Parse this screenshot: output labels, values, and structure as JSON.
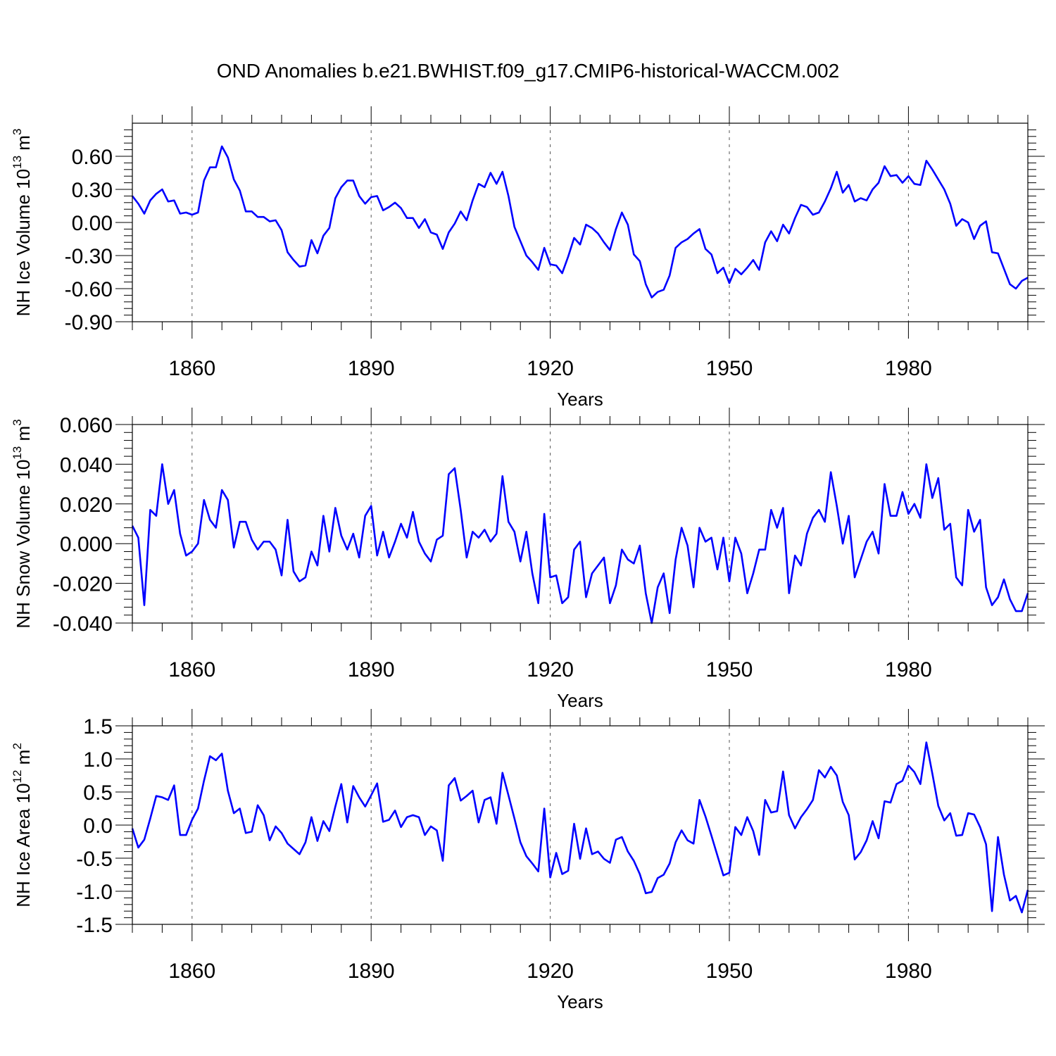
{
  "figure": {
    "title": "OND Anomalies b.e21.BWHIST.f09_g17.CMIP6-historical-WACCM.002",
    "line_color": "#0000ff"
  },
  "chart_data": [
    {
      "type": "line",
      "ylabel_main": "NH Ice Volume 10",
      "ylabel_exp": "13",
      "ylabel_unit": " m",
      "ylabel_unit_exp": "3",
      "xlabel": "Years",
      "xlim": [
        1850,
        2000
      ],
      "ylim": [
        -0.9,
        0.9
      ],
      "yticks": [
        -0.9,
        -0.6,
        -0.3,
        0.0,
        0.3,
        0.6
      ],
      "ytick_labels": [
        "-0.90",
        "-0.60",
        "-0.30",
        "0.00",
        "0.30",
        "0.60"
      ],
      "xticks": [
        1860,
        1890,
        1920,
        1950,
        1980
      ],
      "xtick_labels": [
        "1860",
        "1890",
        "1920",
        "1950",
        "1980"
      ],
      "x_start": 1850,
      "series": [
        {
          "name": "NH Ice Volume",
          "values": [
            0.24,
            0.17,
            0.08,
            0.2,
            0.26,
            0.3,
            0.19,
            0.2,
            0.08,
            0.09,
            0.07,
            0.09,
            0.38,
            0.5,
            0.5,
            0.69,
            0.59,
            0.39,
            0.29,
            0.1,
            0.1,
            0.05,
            0.05,
            0.01,
            0.02,
            -0.07,
            -0.27,
            -0.34,
            -0.4,
            -0.39,
            -0.16,
            -0.28,
            -0.12,
            -0.05,
            0.22,
            0.32,
            0.38,
            0.38,
            0.24,
            0.17,
            0.23,
            0.24,
            0.11,
            0.14,
            0.18,
            0.13,
            0.04,
            0.04,
            -0.05,
            0.03,
            -0.09,
            -0.11,
            -0.24,
            -0.09,
            -0.01,
            0.1,
            0.02,
            0.2,
            0.35,
            0.32,
            0.45,
            0.35,
            0.46,
            0.24,
            -0.04,
            -0.17,
            -0.3,
            -0.36,
            -0.43,
            -0.23,
            -0.38,
            -0.39,
            -0.46,
            -0.31,
            -0.14,
            -0.2,
            -0.02,
            -0.05,
            -0.1,
            -0.18,
            -0.25,
            -0.06,
            0.09,
            -0.02,
            -0.29,
            -0.35,
            -0.56,
            -0.68,
            -0.63,
            -0.61,
            -0.48,
            -0.23,
            -0.18,
            -0.15,
            -0.1,
            -0.06,
            -0.24,
            -0.29,
            -0.46,
            -0.41,
            -0.55,
            -0.42,
            -0.47,
            -0.41,
            -0.34,
            -0.43,
            -0.18,
            -0.08,
            -0.17,
            -0.02,
            -0.1,
            0.04,
            0.16,
            0.14,
            0.07,
            0.09,
            0.19,
            0.31,
            0.46,
            0.27,
            0.34,
            0.19,
            0.22,
            0.2,
            0.3,
            0.36,
            0.51,
            0.42,
            0.43,
            0.36,
            0.42,
            0.35,
            0.34,
            0.56,
            0.48,
            0.39,
            0.3,
            0.17,
            -0.03,
            0.03,
            0.0,
            -0.15,
            -0.03,
            0.01,
            -0.27,
            -0.28,
            -0.42,
            -0.56,
            -0.6,
            -0.53,
            -0.5
          ]
        }
      ]
    },
    {
      "type": "line",
      "ylabel_main": "NH Snow Volume 10",
      "ylabel_exp": "13",
      "ylabel_unit": " m",
      "ylabel_unit_exp": "3",
      "xlabel": "Years",
      "xlim": [
        1850,
        2000
      ],
      "ylim": [
        -0.04,
        0.06
      ],
      "yticks": [
        -0.04,
        -0.02,
        0.0,
        0.02,
        0.04,
        0.06
      ],
      "ytick_labels": [
        "-0.040",
        "-0.020",
        "0.000",
        "0.020",
        "0.040",
        "0.060"
      ],
      "xticks": [
        1860,
        1890,
        1920,
        1950,
        1980
      ],
      "xtick_labels": [
        "1860",
        "1890",
        "1920",
        "1950",
        "1980"
      ],
      "x_start": 1850,
      "series": [
        {
          "name": "NH Snow Volume",
          "values": [
            0.009,
            0.003,
            -0.031,
            0.017,
            0.014,
            0.04,
            0.02,
            0.027,
            0.005,
            -0.006,
            -0.004,
            0.0,
            0.022,
            0.012,
            0.008,
            0.027,
            0.022,
            -0.002,
            0.011,
            0.011,
            0.002,
            -0.003,
            0.001,
            0.001,
            -0.003,
            -0.016,
            0.012,
            -0.014,
            -0.019,
            -0.017,
            -0.004,
            -0.011,
            0.014,
            -0.004,
            0.018,
            0.004,
            -0.003,
            0.005,
            -0.007,
            0.014,
            0.019,
            -0.006,
            0.006,
            -0.007,
            0.001,
            0.01,
            0.003,
            0.016,
            0.001,
            -0.005,
            -0.009,
            0.002,
            0.004,
            0.035,
            0.038,
            0.017,
            -0.007,
            0.006,
            0.003,
            0.007,
            0.001,
            0.005,
            0.034,
            0.011,
            0.006,
            -0.009,
            0.006,
            -0.015,
            -0.03,
            0.015,
            -0.017,
            -0.016,
            -0.03,
            -0.027,
            -0.003,
            0.001,
            -0.027,
            -0.015,
            -0.011,
            -0.007,
            -0.03,
            -0.021,
            -0.003,
            -0.008,
            -0.01,
            -0.001,
            -0.025,
            -0.04,
            -0.022,
            -0.015,
            -0.035,
            -0.008,
            0.008,
            -0.001,
            -0.022,
            0.008,
            0.001,
            0.003,
            -0.013,
            0.003,
            -0.019,
            0.003,
            -0.005,
            -0.025,
            -0.015,
            -0.003,
            -0.003,
            0.017,
            0.008,
            0.018,
            -0.025,
            -0.006,
            -0.011,
            0.005,
            0.013,
            0.017,
            0.011,
            0.036,
            0.019,
            0.0,
            0.014,
            -0.017,
            -0.008,
            0.001,
            0.006,
            -0.005,
            0.03,
            0.014,
            0.014,
            0.026,
            0.015,
            0.02,
            0.013,
            0.04,
            0.023,
            0.033,
            0.007,
            0.01,
            -0.017,
            -0.021,
            0.017,
            0.006,
            0.012,
            -0.022,
            -0.031,
            -0.027,
            -0.018,
            -0.028,
            -0.034,
            -0.034,
            -0.025
          ]
        }
      ]
    },
    {
      "type": "line",
      "ylabel_main": "NH Ice Area 10",
      "ylabel_exp": "12",
      "ylabel_unit": " m",
      "ylabel_unit_exp": "2",
      "xlabel": "Years",
      "xlim": [
        1850,
        2000
      ],
      "ylim": [
        -1.5,
        1.5
      ],
      "yticks": [
        -1.5,
        -1.0,
        -0.5,
        0.0,
        0.5,
        1.0,
        1.5
      ],
      "ytick_labels": [
        "-1.5",
        "-1.0",
        "-0.5",
        "0.0",
        "0.5",
        "1.0",
        "1.5"
      ],
      "xticks": [
        1860,
        1890,
        1920,
        1950,
        1980
      ],
      "xtick_labels": [
        "1860",
        "1890",
        "1920",
        "1950",
        "1980"
      ],
      "x_start": 1850,
      "series": [
        {
          "name": "NH Ice Area",
          "values": [
            -0.05,
            -0.34,
            -0.22,
            0.1,
            0.44,
            0.42,
            0.38,
            0.6,
            -0.15,
            -0.15,
            0.08,
            0.25,
            0.67,
            1.04,
            0.98,
            1.08,
            0.52,
            0.18,
            0.25,
            -0.12,
            -0.1,
            0.3,
            0.15,
            -0.23,
            -0.02,
            -0.12,
            -0.28,
            -0.36,
            -0.44,
            -0.26,
            0.12,
            -0.24,
            0.06,
            -0.09,
            0.28,
            0.62,
            0.04,
            0.59,
            0.42,
            0.28,
            0.45,
            0.63,
            0.05,
            0.08,
            0.22,
            -0.03,
            0.12,
            0.15,
            0.12,
            -0.15,
            -0.02,
            -0.08,
            -0.54,
            0.6,
            0.71,
            0.37,
            0.44,
            0.52,
            0.04,
            0.38,
            0.42,
            0.02,
            0.79,
            0.45,
            0.1,
            -0.26,
            -0.47,
            -0.58,
            -0.7,
            0.25,
            -0.79,
            -0.42,
            -0.74,
            -0.69,
            0.02,
            -0.51,
            -0.05,
            -0.44,
            -0.4,
            -0.51,
            -0.57,
            -0.22,
            -0.18,
            -0.4,
            -0.54,
            -0.74,
            -1.03,
            -1.01,
            -0.8,
            -0.75,
            -0.58,
            -0.26,
            -0.08,
            -0.23,
            -0.28,
            0.38,
            0.13,
            -0.16,
            -0.46,
            -0.76,
            -0.72,
            -0.03,
            -0.15,
            0.12,
            -0.09,
            -0.45,
            0.38,
            0.19,
            0.21,
            0.81,
            0.15,
            -0.05,
            0.12,
            0.24,
            0.38,
            0.83,
            0.72,
            0.88,
            0.75,
            0.35,
            0.15,
            -0.52,
            -0.41,
            -0.23,
            0.06,
            -0.2,
            0.36,
            0.34,
            0.62,
            0.67,
            0.9,
            0.8,
            0.62,
            1.25,
            0.78,
            0.29,
            0.07,
            0.18,
            -0.16,
            -0.15,
            0.18,
            0.16,
            -0.03,
            -0.29,
            -1.3,
            -0.18,
            -0.75,
            -1.14,
            -1.07,
            -1.32,
            -0.98
          ]
        }
      ]
    }
  ]
}
